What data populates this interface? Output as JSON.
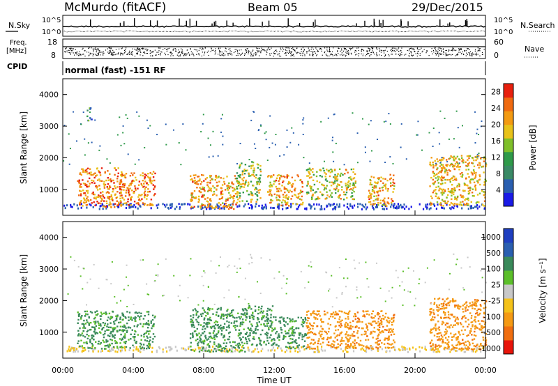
{
  "header": {
    "station": "McMurdo (fitACF)",
    "beam": "Beam 05",
    "date": "29/Dec/2015"
  },
  "top_panel": {
    "nsky_label": "N.Sky",
    "nsearch_label": "N.Search",
    "freq_label": "Freq.",
    "freq_unit": "[MHz]",
    "nave_label": "Nave",
    "cpid_label": "CPID",
    "noise_tick_high": "10^5",
    "noise_tick_low": "10^0",
    "freq_tick_high": "18",
    "freq_tick_low": "8",
    "nave_tick_high": "60",
    "nave_tick_low": "0",
    "cpid_text": "normal (fast) -151 RF"
  },
  "colors": {
    "scale": [
      "#1a1ae6",
      "#2a5fb0",
      "#3a8a66",
      "#2f9a4a",
      "#7fbf2a",
      "#e8c21a",
      "#f39a12",
      "#f06a10",
      "#e8200e"
    ],
    "velocity_scale": [
      "#e8140a",
      "#f06e10",
      "#f59a14",
      "#f4c21a",
      "#c8c8c8",
      "#5cbf2a",
      "#3a8a5a",
      "#2a5fb0",
      "#1f3fc0"
    ]
  },
  "chart_data": [
    {
      "type": "heatmap",
      "name": "power",
      "ylabel": "Slant Range [km]",
      "ylim": [
        180,
        4500
      ],
      "xlim_hours": [
        0,
        24
      ],
      "yticks": [
        "1000",
        "2000",
        "3000",
        "4000"
      ],
      "colorbar": {
        "label": "Power [dB]",
        "ticks": [
          "4",
          "8",
          "12",
          "16",
          "20",
          "24",
          "28"
        ],
        "range": [
          0,
          30
        ]
      },
      "echo_regions": [
        {
          "t0": 0.8,
          "t1": 3.4,
          "r0": 450,
          "r1": 1700,
          "value": 24
        },
        {
          "t0": 1.3,
          "t1": 1.6,
          "r0": 3200,
          "r1": 3600,
          "value": 8
        },
        {
          "t0": 3.2,
          "t1": 5.2,
          "r0": 500,
          "r1": 1600,
          "value": 24
        },
        {
          "t0": 7.2,
          "t1": 9.8,
          "r0": 400,
          "r1": 1500,
          "value": 22
        },
        {
          "t0": 9.8,
          "t1": 11.2,
          "r0": 600,
          "r1": 1900,
          "value": 16
        },
        {
          "t0": 11.6,
          "t1": 13.6,
          "r0": 500,
          "r1": 1500,
          "value": 22
        },
        {
          "t0": 13.8,
          "t1": 15.0,
          "r0": 700,
          "r1": 1700,
          "value": 16
        },
        {
          "t0": 15.0,
          "t1": 16.6,
          "r0": 700,
          "r1": 1700,
          "value": 18
        },
        {
          "t0": 17.3,
          "t1": 18.8,
          "r0": 500,
          "r1": 1500,
          "value": 22
        },
        {
          "t0": 20.8,
          "t1": 24.0,
          "r0": 500,
          "r1": 2100,
          "value": 20
        }
      ]
    },
    {
      "type": "heatmap",
      "name": "velocity",
      "ylabel": "Slant Range [km]",
      "xlabel": "Time UT",
      "ylim": [
        180,
        4500
      ],
      "xlim_hours": [
        0,
        24
      ],
      "yticks": [
        "1000",
        "2000",
        "3000",
        "4000"
      ],
      "xticks": [
        "00:00",
        "04:00",
        "08:00",
        "12:00",
        "16:00",
        "20:00",
        "00:00"
      ],
      "colorbar": {
        "label": "Velocity [m s⁻¹]",
        "ticks": [
          "1000",
          "500",
          "100",
          "25",
          "-25",
          "-100",
          "-500",
          "-1000"
        ]
      },
      "echo_regions": [
        {
          "t0": 0.8,
          "t1": 5.2,
          "r0": 500,
          "r1": 1700,
          "value": 300
        },
        {
          "t0": 7.2,
          "t1": 10.5,
          "r0": 400,
          "r1": 1800,
          "value": 300
        },
        {
          "t0": 10.5,
          "t1": 12.0,
          "r0": 600,
          "r1": 1900,
          "value": 80
        },
        {
          "t0": 12.0,
          "t1": 13.8,
          "r0": 500,
          "r1": 1500,
          "value": 60
        },
        {
          "t0": 13.8,
          "t1": 18.8,
          "r0": 500,
          "r1": 1700,
          "value": -300
        },
        {
          "t0": 20.8,
          "t1": 24.0,
          "r0": 450,
          "r1": 2100,
          "value": -300
        }
      ]
    }
  ]
}
